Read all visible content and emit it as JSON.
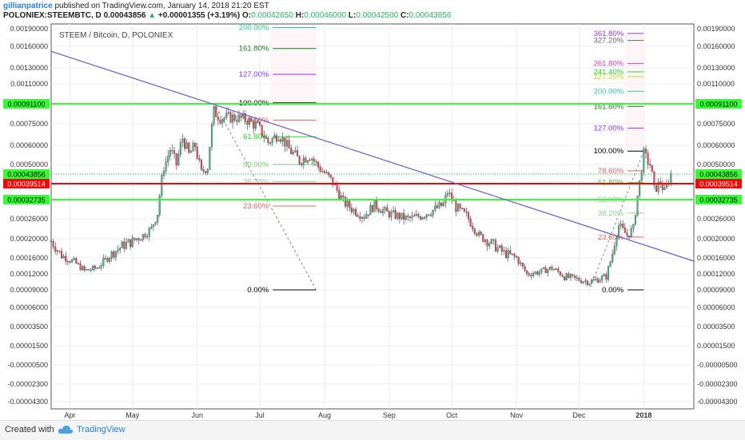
{
  "header": {
    "author": "gillianpatrice",
    "published": "published on TradingView.com, January 14, 2018 21:20 EST",
    "symbol": "POLONIEX:STEEMBTC, D",
    "last": "0.00043856",
    "change": "+0.00001355 (+3.19%)",
    "o_label": "O:",
    "o": "0.00042650",
    "h_label": "H:",
    "h": "0.00046000",
    "l_label": "L:",
    "l": "0.00042500",
    "c_label": "C:",
    "c": "0.00043856"
  },
  "footer": {
    "created_with": "Created with",
    "brand": "TradingView"
  },
  "colors": {
    "up": "#53b987",
    "down": "#eb4d5c",
    "trend": "#6a5acd",
    "green_line": "#33ff33",
    "red_line": "#ff0000"
  },
  "chart_data": {
    "type": "candlestick",
    "title": "STEEM / Bitcoin, D, POLONIEX",
    "y_scale": "custom-nonlinear",
    "y_ticks": [
      "0.00190000",
      "0.00160000",
      "0.00130000",
      "0.00110000",
      "0.00091100",
      "0.00075000",
      "0.00060000",
      "0.00050000",
      "0.00043856",
      "0.00039514",
      "0.00032735",
      "0.00026000",
      "0.00020000",
      "0.00016000",
      "0.00012000",
      "0.00009000",
      "0.00006000",
      "0.00003500",
      "0.00001500",
      "-0.00000500",
      "-0.00002300",
      "-0.00004300"
    ],
    "y_tick_values": [
      0.0019,
      0.0016,
      0.0013,
      0.0011,
      0.000911,
      0.00075,
      0.0006,
      0.0005,
      0.00043856,
      0.00039514,
      0.00032735,
      0.00026,
      0.0002,
      0.00016,
      0.00012,
      9e-05,
      6e-05,
      3.5e-05,
      1.5e-05,
      -5e-06,
      -2.3e-05,
      -4.3e-05
    ],
    "y_tick_side": "both",
    "y_tick_highlight": {
      "0.00091100": "green",
      "0.00043856": "green",
      "0.00039514": "red",
      "0.00032735": "green"
    },
    "x_ticks": [
      "Apr",
      "May",
      "Jun",
      "Jul",
      "Aug",
      "Sep",
      "Oct",
      "Nov",
      "Dec",
      "2018"
    ],
    "x_tick_dates": [
      "2017-04-01",
      "2017-05-01",
      "2017-06-01",
      "2017-07-01",
      "2017-08-01",
      "2017-09-01",
      "2017-10-01",
      "2017-11-01",
      "2017-12-01",
      "2018-01-01"
    ],
    "x_range": [
      "2017-03-23",
      "2018-01-25"
    ],
    "grid": true,
    "horizontal_lines": [
      {
        "value": 0.000911,
        "label": "0.00091100",
        "color": "green"
      },
      {
        "value": 0.00039514,
        "label": "0.00039514",
        "color": "red"
      },
      {
        "value": 0.00032735,
        "label": "0.00032735",
        "color": "green"
      }
    ],
    "last_price_line": {
      "value": 0.00043856,
      "label": "0.00043856"
    },
    "trendline": {
      "from": [
        "2017-03-23",
        0.00153
      ],
      "to": [
        "2018-01-25",
        0.000152
      ]
    },
    "fib_retracement_1": {
      "anchor_high": [
        "2017-06-09",
        0.00092
      ],
      "anchor_low": [
        "2017-07-28",
        9e-05
      ],
      "label_date": "2017-06-20",
      "extent": [
        "2017-06-09",
        "2017-07-28"
      ],
      "levels": [
        {
          "pct": "0.00%",
          "value": 9e-05,
          "color": "#000000"
        },
        {
          "pct": "23.60%",
          "value": 0.000305,
          "color": "#e06666"
        },
        {
          "pct": "38.20%",
          "value": 0.000405,
          "color": "#99cc99"
        },
        {
          "pct": "50.00%",
          "value": 0.0005,
          "color": "#7ccc7c"
        },
        {
          "pct": "61.80%",
          "value": 0.00066,
          "color": "#2dd52d"
        },
        {
          "pct": "78.60%",
          "value": 0.00078,
          "color": "#e06666"
        },
        {
          "pct": "100.00%",
          "value": 0.00092,
          "color": "#000000"
        },
        {
          "pct": "127.00%",
          "value": 0.00122,
          "color": "#9b30ff"
        },
        {
          "pct": "161.80%",
          "value": 0.00157,
          "color": "#1b7d1b"
        },
        {
          "pct": "200.00%",
          "value": 0.00192,
          "color": "#2dcc9c"
        }
      ]
    },
    "fib_retracement_2": {
      "anchor_high": [
        "2018-01-01",
        0.00057
      ],
      "anchor_low": [
        "2017-12-06",
        9e-05
      ],
      "label_date": "2017-12-07",
      "extent": [
        "2017-12-06",
        "2018-01-01"
      ],
      "levels": [
        {
          "pct": "0.00%",
          "value": 9e-05,
          "color": "#000000"
        },
        {
          "pct": "23.60%",
          "value": 0.000205,
          "color": "#e06666"
        },
        {
          "pct": "38.20%",
          "value": 0.00028,
          "color": "#99cc99"
        },
        {
          "pct": "50.00%",
          "value": 0.00032735,
          "color": "#7ccc7c"
        },
        {
          "pct": "61.80%",
          "value": 0.0004,
          "color": "#2dd52d"
        },
        {
          "pct": "78.60%",
          "value": 0.00046,
          "color": "#e06666"
        },
        {
          "pct": "100.00%",
          "value": 0.00057,
          "color": "#000000"
        },
        {
          "pct": "127.00%",
          "value": 0.00072,
          "color": "#9b30ff"
        },
        {
          "pct": "161.80%",
          "value": 0.00089,
          "color": "#1b7d1b"
        },
        {
          "pct": "200.00%",
          "value": 0.00103,
          "color": "#2dcc9c"
        },
        {
          "pct": "227.20%",
          "value": 0.00119,
          "color": "#cccc33"
        },
        {
          "pct": "241.40%",
          "value": 0.00125,
          "color": "#2dd52d"
        },
        {
          "pct": "261.80%",
          "value": 0.00136,
          "color": "#e833cc"
        },
        {
          "pct": "327.20%",
          "value": 0.0017,
          "color": "#666666"
        },
        {
          "pct": "361.80%",
          "value": 0.00182,
          "color": "#9b30ff"
        }
      ]
    },
    "close_path": [
      [
        "2017-03-23",
        0.000195
      ],
      [
        "2017-03-28",
        0.000165
      ],
      [
        "2017-04-03",
        0.00015
      ],
      [
        "2017-04-08",
        0.000128
      ],
      [
        "2017-04-14",
        0.000135
      ],
      [
        "2017-04-20",
        0.000165
      ],
      [
        "2017-04-26",
        0.000185
      ],
      [
        "2017-05-01",
        0.000195
      ],
      [
        "2017-05-06",
        0.00021
      ],
      [
        "2017-05-10",
        0.00023
      ],
      [
        "2017-05-13",
        0.00028
      ],
      [
        "2017-05-16",
        0.00048
      ],
      [
        "2017-05-19",
        0.00058
      ],
      [
        "2017-05-22",
        0.0005
      ],
      [
        "2017-05-25",
        0.00065
      ],
      [
        "2017-05-28",
        0.00055
      ],
      [
        "2017-05-31",
        0.0006
      ],
      [
        "2017-06-03",
        0.00045
      ],
      [
        "2017-06-06",
        0.00048
      ],
      [
        "2017-06-09",
        0.00085
      ],
      [
        "2017-06-12",
        0.0008
      ],
      [
        "2017-06-16",
        0.0008
      ],
      [
        "2017-06-20",
        0.0008
      ],
      [
        "2017-06-25",
        0.00078
      ],
      [
        "2017-06-30",
        0.00073
      ],
      [
        "2017-07-05",
        0.00062
      ],
      [
        "2017-07-10",
        0.00068
      ],
      [
        "2017-07-15",
        0.00058
      ],
      [
        "2017-07-20",
        0.00052
      ],
      [
        "2017-07-25",
        0.00055
      ],
      [
        "2017-07-30",
        0.00047
      ],
      [
        "2017-08-05",
        0.0004
      ],
      [
        "2017-08-10",
        0.00032
      ],
      [
        "2017-08-15",
        0.00029
      ],
      [
        "2017-08-20",
        0.00027
      ],
      [
        "2017-08-25",
        0.00031
      ],
      [
        "2017-08-31",
        0.00028
      ],
      [
        "2017-09-05",
        0.00027
      ],
      [
        "2017-09-10",
        0.00026
      ],
      [
        "2017-09-16",
        0.00027
      ],
      [
        "2017-09-22",
        0.00029
      ],
      [
        "2017-09-27",
        0.00031
      ],
      [
        "2017-09-29",
        0.00036
      ],
      [
        "2017-10-03",
        0.0003
      ],
      [
        "2017-10-08",
        0.00027
      ],
      [
        "2017-10-14",
        0.00021
      ],
      [
        "2017-10-20",
        0.00019
      ],
      [
        "2017-10-26",
        0.00017
      ],
      [
        "2017-11-01",
        0.00016
      ],
      [
        "2017-11-06",
        0.00012
      ],
      [
        "2017-11-12",
        0.000125
      ],
      [
        "2017-11-18",
        0.000135
      ],
      [
        "2017-11-24",
        0.000115
      ],
      [
        "2017-11-30",
        0.00011
      ],
      [
        "2017-12-06",
        0.000105
      ],
      [
        "2017-12-10",
        0.00011
      ],
      [
        "2017-12-14",
        0.000115
      ],
      [
        "2017-12-17",
        0.00017
      ],
      [
        "2017-12-20",
        0.00024
      ],
      [
        "2017-12-24",
        0.00021
      ],
      [
        "2017-12-27",
        0.00023
      ],
      [
        "2017-12-30",
        0.0004
      ],
      [
        "2018-01-01",
        0.00055
      ],
      [
        "2018-01-04",
        0.0005
      ],
      [
        "2018-01-06",
        0.00037
      ],
      [
        "2018-01-09",
        0.0004
      ],
      [
        "2018-01-11",
        0.00036
      ],
      [
        "2018-01-14",
        0.00043856
      ]
    ]
  }
}
